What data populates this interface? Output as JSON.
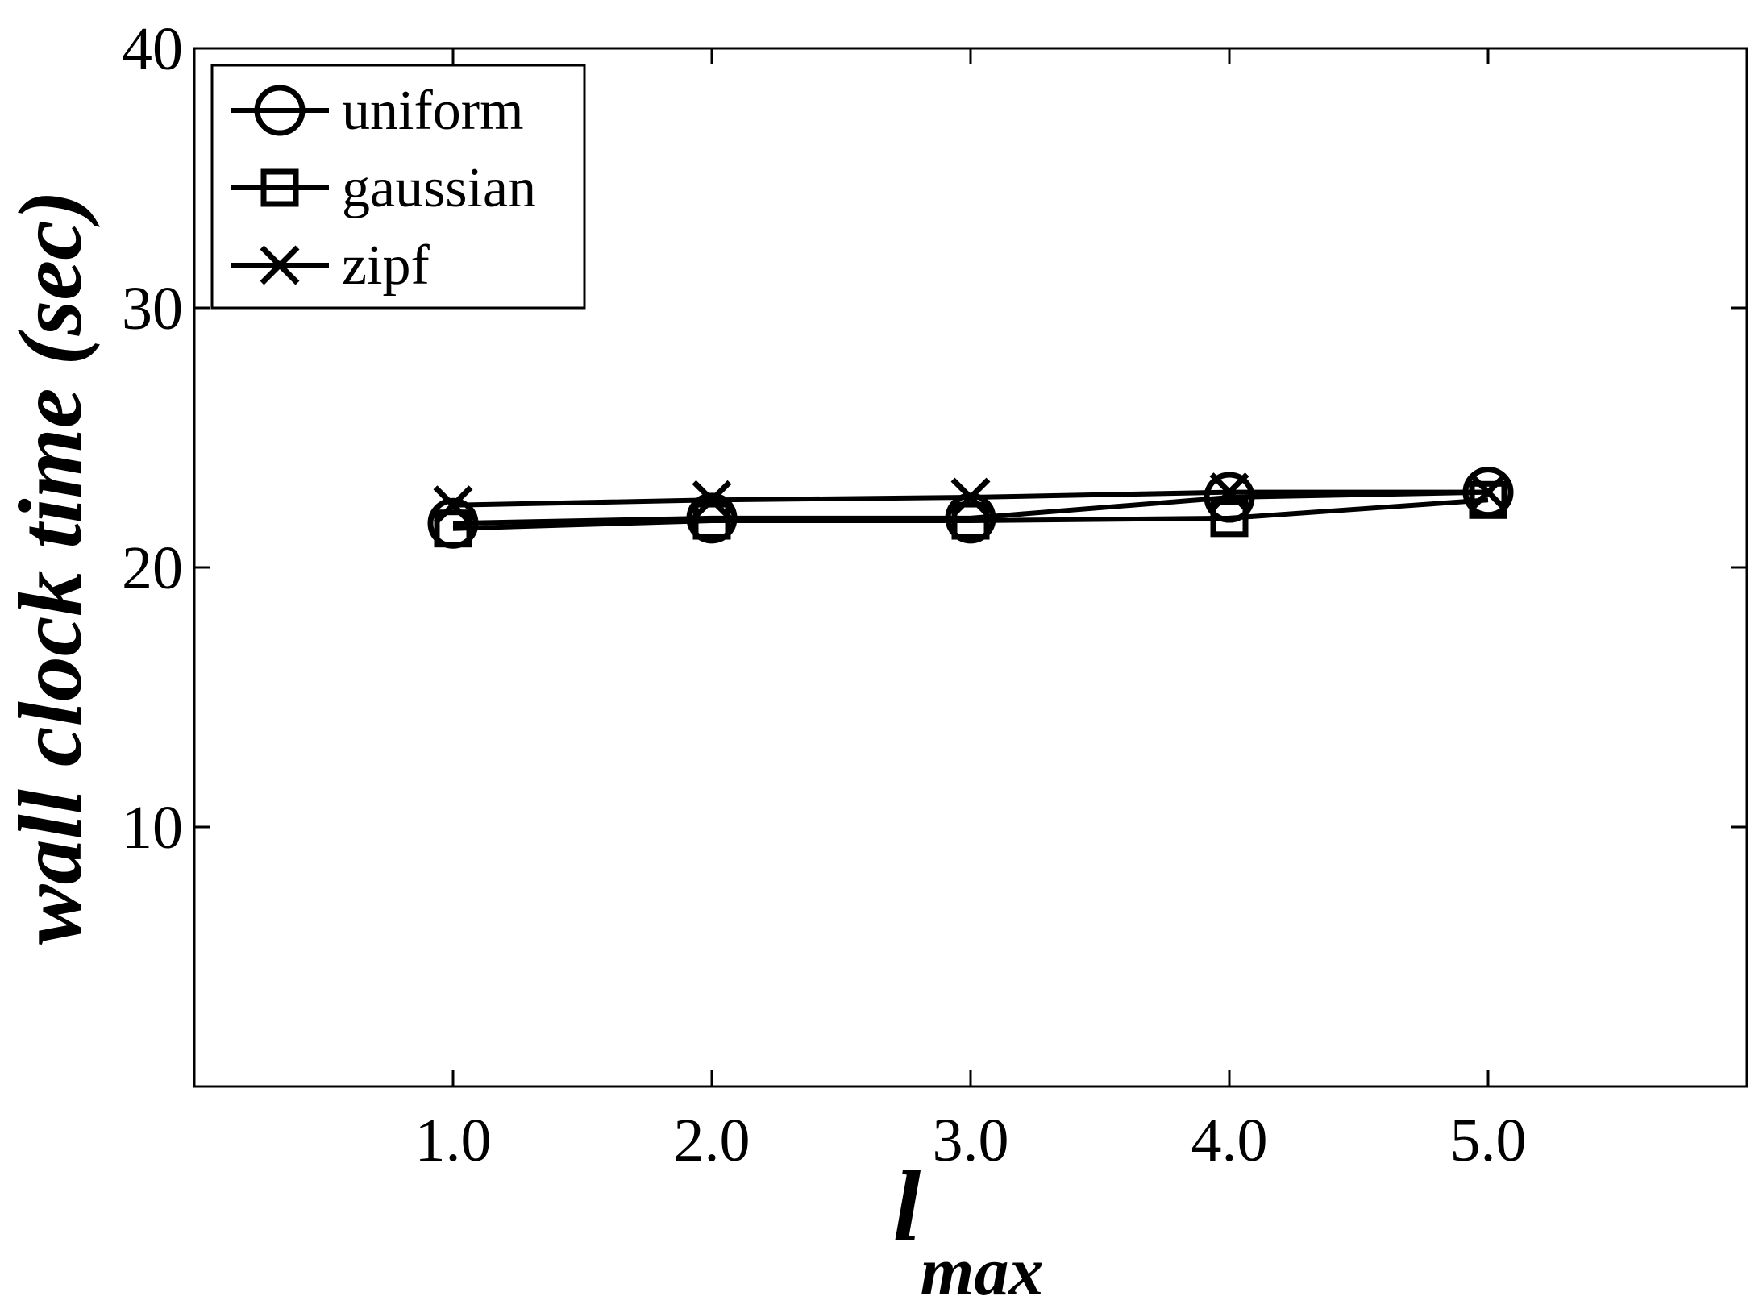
{
  "chart_data": {
    "type": "line",
    "x": [
      1.0,
      2.0,
      3.0,
      4.0,
      5.0
    ],
    "x_tick_labels": [
      "1.0",
      "2.0",
      "3.0",
      "4.0",
      "5.0"
    ],
    "y_ticks": [
      10,
      20,
      30,
      40
    ],
    "xlim": [
      0.0,
      6.0
    ],
    "ylim": [
      0,
      40
    ],
    "xlabel_main": "l",
    "xlabel_sub": "max",
    "ylabel": "wall clock time (sec)",
    "legend_position": "top-left",
    "grid": false,
    "series": [
      {
        "name": "uniform",
        "marker": "circle",
        "values": [
          21.7,
          21.9,
          21.9,
          22.7,
          22.9
        ]
      },
      {
        "name": "gaussian",
        "marker": "square",
        "values": [
          21.5,
          21.8,
          21.8,
          21.9,
          22.6
        ]
      },
      {
        "name": "zipf",
        "marker": "x",
        "values": [
          22.4,
          22.6,
          22.7,
          22.9,
          22.9
        ]
      }
    ]
  }
}
